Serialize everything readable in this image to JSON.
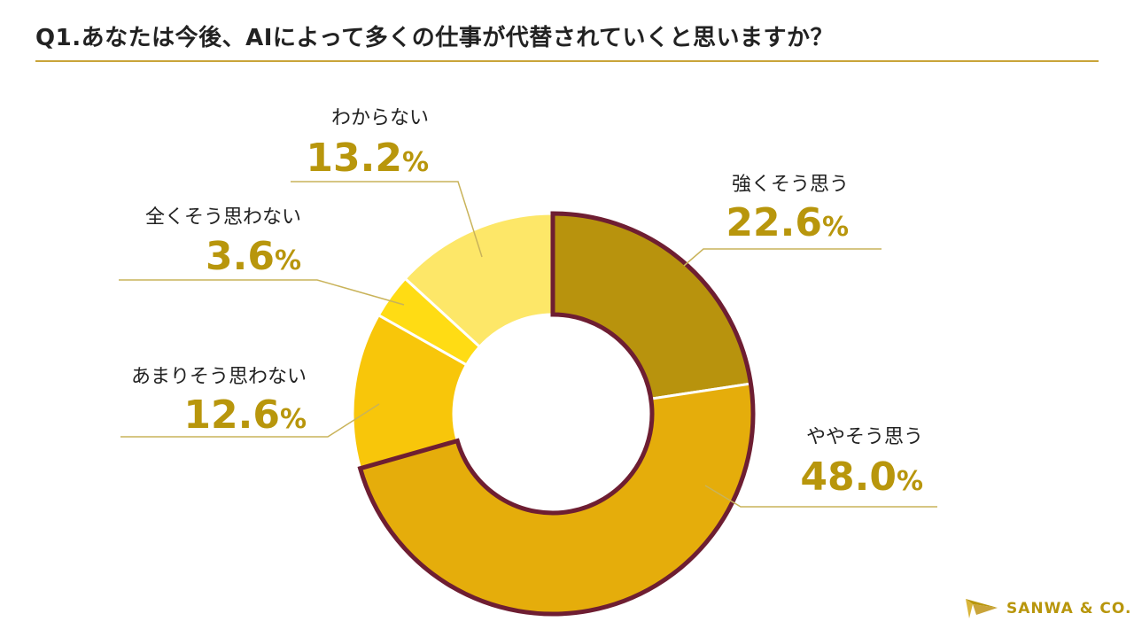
{
  "title": "Q1.あなたは今後、AIによって多くの仕事が代替されていくと思いますか？",
  "brand": {
    "name": "SANWA & CO."
  },
  "chart_data": {
    "type": "pie",
    "variant": "donut",
    "title": "Q1.あなたは今後、AIによって多くの仕事が代替されていくと思いますか？",
    "unit": "%",
    "slices": [
      {
        "label": "強くそう思う",
        "value": 22.6,
        "display": "22.6",
        "color": "#b8930d",
        "highlighted": true
      },
      {
        "label": "ややそう思う",
        "value": 48.0,
        "display": "48.0",
        "color": "#e5ad0b",
        "highlighted": true
      },
      {
        "label": "あまりそう思わない",
        "value": 12.6,
        "display": "12.6",
        "color": "#f8c60a",
        "highlighted": false
      },
      {
        "label": "全くそう思わない",
        "value": 3.6,
        "display": "3.6",
        "color": "#ffdc14",
        "highlighted": false
      },
      {
        "label": "わからない",
        "value": 13.2,
        "display": "13.2",
        "color": "#fde768",
        "highlighted": false
      }
    ],
    "highlight_color": "#6e1e32",
    "label_color": "#b8960c"
  }
}
